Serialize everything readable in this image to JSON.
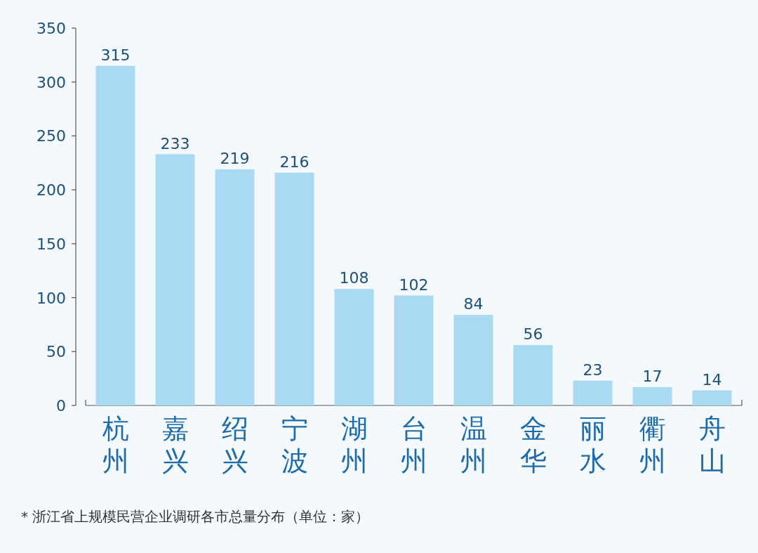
{
  "chart_data": {
    "type": "bar",
    "categories": [
      "杭州",
      "嘉兴",
      "绍兴",
      "宁波",
      "湖州",
      "台州",
      "温州",
      "金华",
      "丽水",
      "衢州",
      "舟山"
    ],
    "values": [
      315,
      233,
      219,
      216,
      108,
      102,
      84,
      56,
      23,
      17,
      14
    ],
    "color": "#aad9f2",
    "ylim": [
      0,
      350
    ],
    "yticks": [
      0,
      50,
      100,
      150,
      200,
      250,
      300,
      350
    ],
    "data_labels": true,
    "annotations": [
      "* 浙江省上规模民营企业调研各市总量分布（单位：家）"
    ]
  }
}
